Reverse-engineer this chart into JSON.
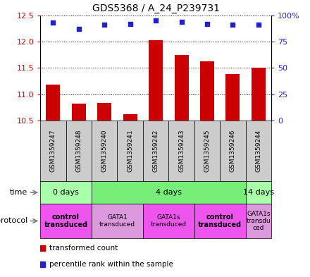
{
  "title": "GDS5368 / A_24_P239731",
  "samples": [
    "GSM1359247",
    "GSM1359248",
    "GSM1359240",
    "GSM1359241",
    "GSM1359242",
    "GSM1359243",
    "GSM1359245",
    "GSM1359246",
    "GSM1359244"
  ],
  "transformed_counts": [
    11.18,
    10.82,
    10.83,
    10.62,
    12.02,
    11.75,
    11.62,
    11.38,
    11.5
  ],
  "percentile_ranks": [
    93,
    87,
    91,
    92,
    95,
    94,
    92,
    91,
    91
  ],
  "ylim_left": [
    10.5,
    12.5
  ],
  "yticks_left": [
    10.5,
    11.0,
    11.5,
    12.0,
    12.5
  ],
  "ylim_right": [
    0,
    100
  ],
  "yticks_right": [
    0,
    25,
    50,
    75,
    100
  ],
  "yticklabels_right": [
    "0",
    "25",
    "50",
    "75",
    "100%"
  ],
  "bar_color": "#cc0000",
  "dot_color": "#2222cc",
  "bar_width": 0.55,
  "time_groups": [
    {
      "label": "0 days",
      "start": 0,
      "end": 2,
      "color": "#aaffaa"
    },
    {
      "label": "4 days",
      "start": 2,
      "end": 8,
      "color": "#77ee77"
    },
    {
      "label": "14 days",
      "start": 8,
      "end": 9,
      "color": "#aaffaa"
    }
  ],
  "protocol_groups": [
    {
      "label": "control\ntransduced",
      "start": 0,
      "end": 2,
      "color": "#ee55ee",
      "bold": true
    },
    {
      "label": "GATA1\ntransduced",
      "start": 2,
      "end": 4,
      "color": "#dd99dd",
      "bold": false
    },
    {
      "label": "GATA1s\ntransduced",
      "start": 4,
      "end": 6,
      "color": "#ee55ee",
      "bold": false
    },
    {
      "label": "control\ntransduced",
      "start": 6,
      "end": 8,
      "color": "#ee55ee",
      "bold": true
    },
    {
      "label": "GATA1s\ntransdu\nced",
      "start": 8,
      "end": 9,
      "color": "#dd99dd",
      "bold": false
    }
  ],
  "left_ylabel_color": "#cc0000",
  "right_ylabel_color": "#2222cc",
  "background_color": "#ffffff",
  "plot_bg_color": "#ffffff",
  "grid_color": "#000000",
  "sample_bg_color": "#cccccc"
}
